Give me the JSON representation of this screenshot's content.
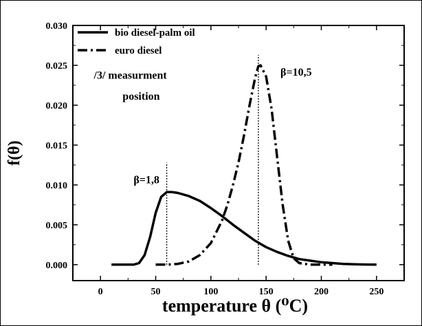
{
  "chart_data": {
    "type": "line",
    "title": "",
    "xlabel": "temperature θ (⁰C)",
    "ylabel": "f(θ)",
    "xlim": [
      -25,
      275
    ],
    "ylim": [
      -0.002,
      0.03
    ],
    "xticks": [
      0,
      50,
      100,
      150,
      200,
      250
    ],
    "xtick_labels": [
      "0",
      "50",
      "100",
      "150",
      "200",
      "250"
    ],
    "yticks": [
      0.0,
      0.005,
      0.01,
      0.015,
      0.02,
      0.025,
      0.03
    ],
    "ytick_labels": [
      "0.000",
      "0.005",
      "0.010",
      "0.015",
      "0.020",
      "0.025",
      "0.030"
    ],
    "grid": false,
    "legend_position": "top-left",
    "series": [
      {
        "name": "bio diesel-palm oil",
        "style": "solid",
        "color": "#000000",
        "x": [
          10,
          20,
          30,
          35,
          40,
          45,
          50,
          55,
          60,
          65,
          70,
          80,
          90,
          100,
          110,
          120,
          130,
          140,
          150,
          160,
          170,
          180,
          190,
          200,
          210,
          220,
          230,
          240,
          250
        ],
        "y": [
          0.0,
          0.0,
          0.0,
          0.0002,
          0.0012,
          0.0035,
          0.0065,
          0.0085,
          0.0091,
          0.0091,
          0.009,
          0.0086,
          0.008,
          0.0071,
          0.0061,
          0.005,
          0.004,
          0.003,
          0.0022,
          0.0016,
          0.0011,
          0.0007,
          0.0005,
          0.0003,
          0.0002,
          0.0001,
          5e-05,
          2e-05,
          0.0
        ]
      },
      {
        "name": "euro diesel",
        "style": "dash-dot",
        "color": "#000000",
        "x": [
          50,
          60,
          70,
          80,
          90,
          100,
          110,
          115,
          120,
          125,
          130,
          135,
          140,
          143,
          145,
          150,
          155,
          160,
          165,
          170,
          175,
          180,
          190,
          200,
          210
        ],
        "y": [
          0.0,
          0.0,
          0.0001,
          0.0004,
          0.0012,
          0.0027,
          0.0055,
          0.0075,
          0.01,
          0.0128,
          0.0162,
          0.02,
          0.0234,
          0.0249,
          0.025,
          0.0236,
          0.0195,
          0.0135,
          0.0075,
          0.003,
          0.0008,
          0.0002,
          0.0,
          0.0,
          0.0
        ]
      }
    ],
    "vlines": [
      {
        "x": 60,
        "y_top": 0.0128
      },
      {
        "x": 143,
        "y_top": 0.0263
      }
    ],
    "annotations": [
      {
        "text": "β=1,8",
        "x": 30,
        "y": 0.0102
      },
      {
        "text": "β=10,5",
        "x": 163,
        "y": 0.0237
      },
      {
        "text": "/3/ measurment",
        "x": -6,
        "y": 0.0233
      },
      {
        "text": "position",
        "x": 20,
        "y": 0.0207
      }
    ]
  }
}
